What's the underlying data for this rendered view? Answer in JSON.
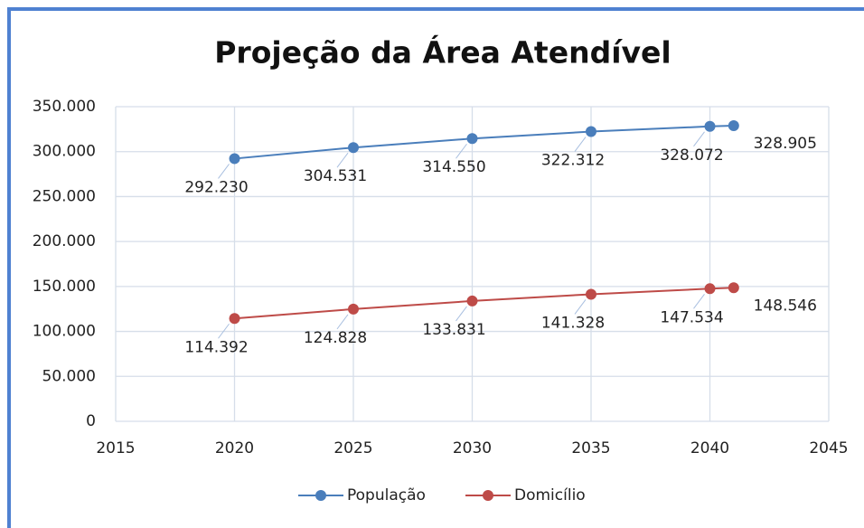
{
  "chart_data": {
    "type": "line",
    "title": "Projeção da Área Atendível",
    "x": [
      2020,
      2025,
      2030,
      2035,
      2040,
      2041
    ],
    "series": [
      {
        "name": "População",
        "color": "#4a7ebb",
        "values": [
          292230,
          304531,
          314550,
          322312,
          328072,
          328905
        ],
        "value_labels": [
          "292.230",
          "304.531",
          "314.550",
          "322.312",
          "328.072",
          "328.905"
        ]
      },
      {
        "name": "Domicílio",
        "color": "#be4b48",
        "values": [
          114392,
          124828,
          133831,
          141328,
          147534,
          148546
        ],
        "value_labels": [
          "114.392",
          "124.828",
          "133.831",
          "141.328",
          "147.534",
          "148.546"
        ]
      }
    ],
    "xlim": [
      2015,
      2045
    ],
    "xticks": [
      2015,
      2020,
      2025,
      2030,
      2035,
      2040,
      2045
    ],
    "ylim": [
      0,
      350000
    ],
    "yticks": [
      0,
      {
        "value": 50000,
        "label": "50.000"
      },
      {
        "value": 100000,
        "label": "100.000"
      },
      {
        "value": 150000,
        "label": "150.000"
      },
      {
        "value": 200000,
        "label": "200.000"
      },
      {
        "value": 250000,
        "label": "250.000"
      },
      {
        "value": 300000,
        "label": "300.000"
      },
      {
        "value": 350000,
        "label": "350.000"
      }
    ],
    "grid": true,
    "legend": "bottom"
  }
}
